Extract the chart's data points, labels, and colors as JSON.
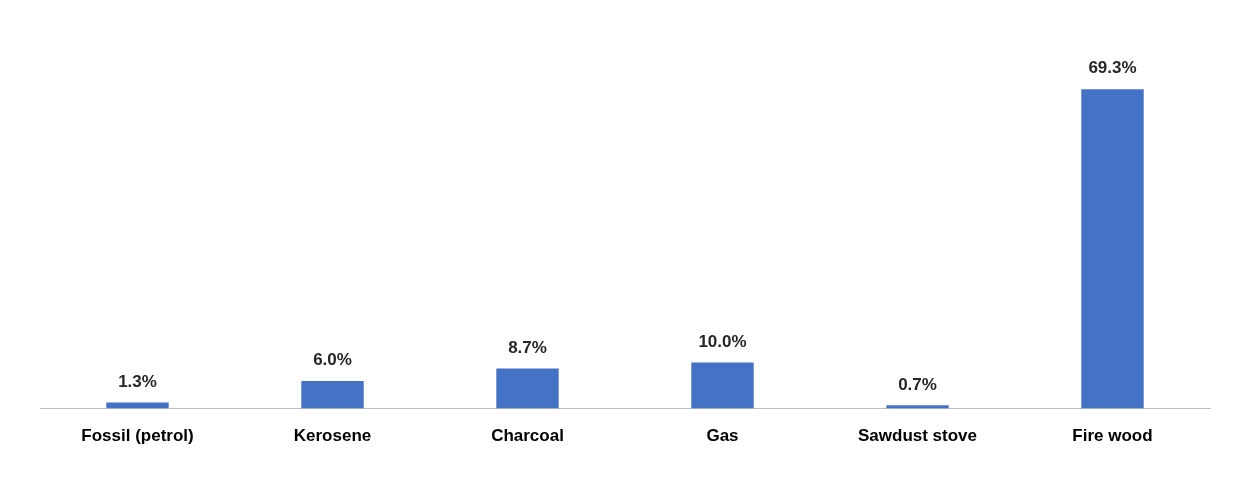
{
  "chart_data": {
    "type": "bar",
    "categories": [
      "Fossil (petrol)",
      "Kerosene",
      "Charcoal",
      "Gas",
      "Sawdust stove",
      "Fire wood"
    ],
    "values": [
      1.3,
      6.0,
      8.7,
      10.0,
      0.7,
      69.3
    ],
    "value_labels": [
      "1.3%",
      "6.0%",
      "8.7%",
      "10.0%",
      "0.7%",
      "69.3%"
    ],
    "color": "#4472c4",
    "grid": false,
    "legend": false
  }
}
